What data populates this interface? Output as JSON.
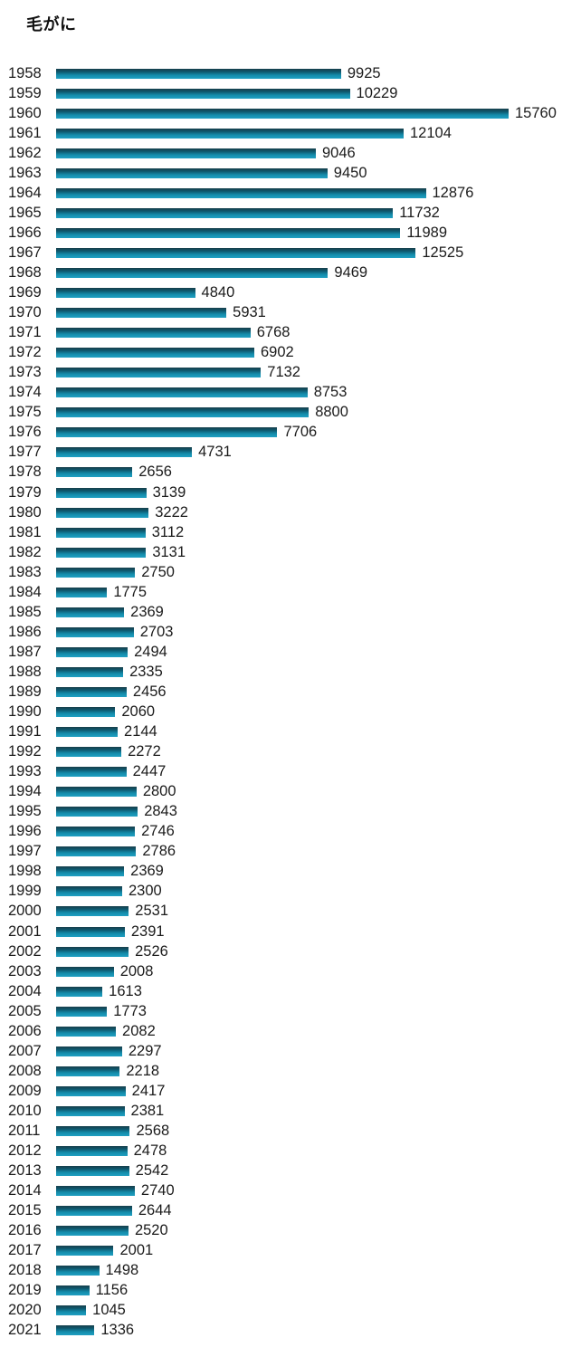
{
  "title": "毛がに",
  "colors": {
    "bar_gradient_top": "#173f4b",
    "bar_gradient_bottom": "#209fc2",
    "text": "#1b1b1b",
    "background": "#ffffff"
  },
  "chart_data": {
    "type": "bar",
    "orientation": "horizontal",
    "title": "毛がに",
    "xlabel": "",
    "ylabel": "",
    "xlim": [
      0,
      15760
    ],
    "grid": false,
    "legend": false,
    "value_labels": true,
    "categories": [
      "1958",
      "1959",
      "1960",
      "1961",
      "1962",
      "1963",
      "1964",
      "1965",
      "1966",
      "1967",
      "1968",
      "1969",
      "1970",
      "1971",
      "1972",
      "1973",
      "1974",
      "1975",
      "1976",
      "1977",
      "1978",
      "1979",
      "1980",
      "1981",
      "1982",
      "1983",
      "1984",
      "1985",
      "1986",
      "1987",
      "1988",
      "1989",
      "1990",
      "1991",
      "1992",
      "1993",
      "1994",
      "1995",
      "1996",
      "1997",
      "1998",
      "1999",
      "2000",
      "2001",
      "2002",
      "2003",
      "2004",
      "2005",
      "2006",
      "2007",
      "2008",
      "2009",
      "2010",
      "2011",
      "2012",
      "2013",
      "2014",
      "2015",
      "2016",
      "2017",
      "2018",
      "2019",
      "2020",
      "2021"
    ],
    "values": [
      9925,
      10229,
      15760,
      12104,
      9046,
      9450,
      12876,
      11732,
      11989,
      12525,
      9469,
      4840,
      5931,
      6768,
      6902,
      7132,
      8753,
      8800,
      7706,
      4731,
      2656,
      3139,
      3222,
      3112,
      3131,
      2750,
      1775,
      2369,
      2703,
      2494,
      2335,
      2456,
      2060,
      2144,
      2272,
      2447,
      2800,
      2843,
      2746,
      2786,
      2369,
      2300,
      2531,
      2391,
      2526,
      2008,
      1613,
      1773,
      2082,
      2297,
      2218,
      2417,
      2381,
      2568,
      2478,
      2542,
      2740,
      2644,
      2520,
      2001,
      1498,
      1156,
      1045,
      1336
    ]
  }
}
